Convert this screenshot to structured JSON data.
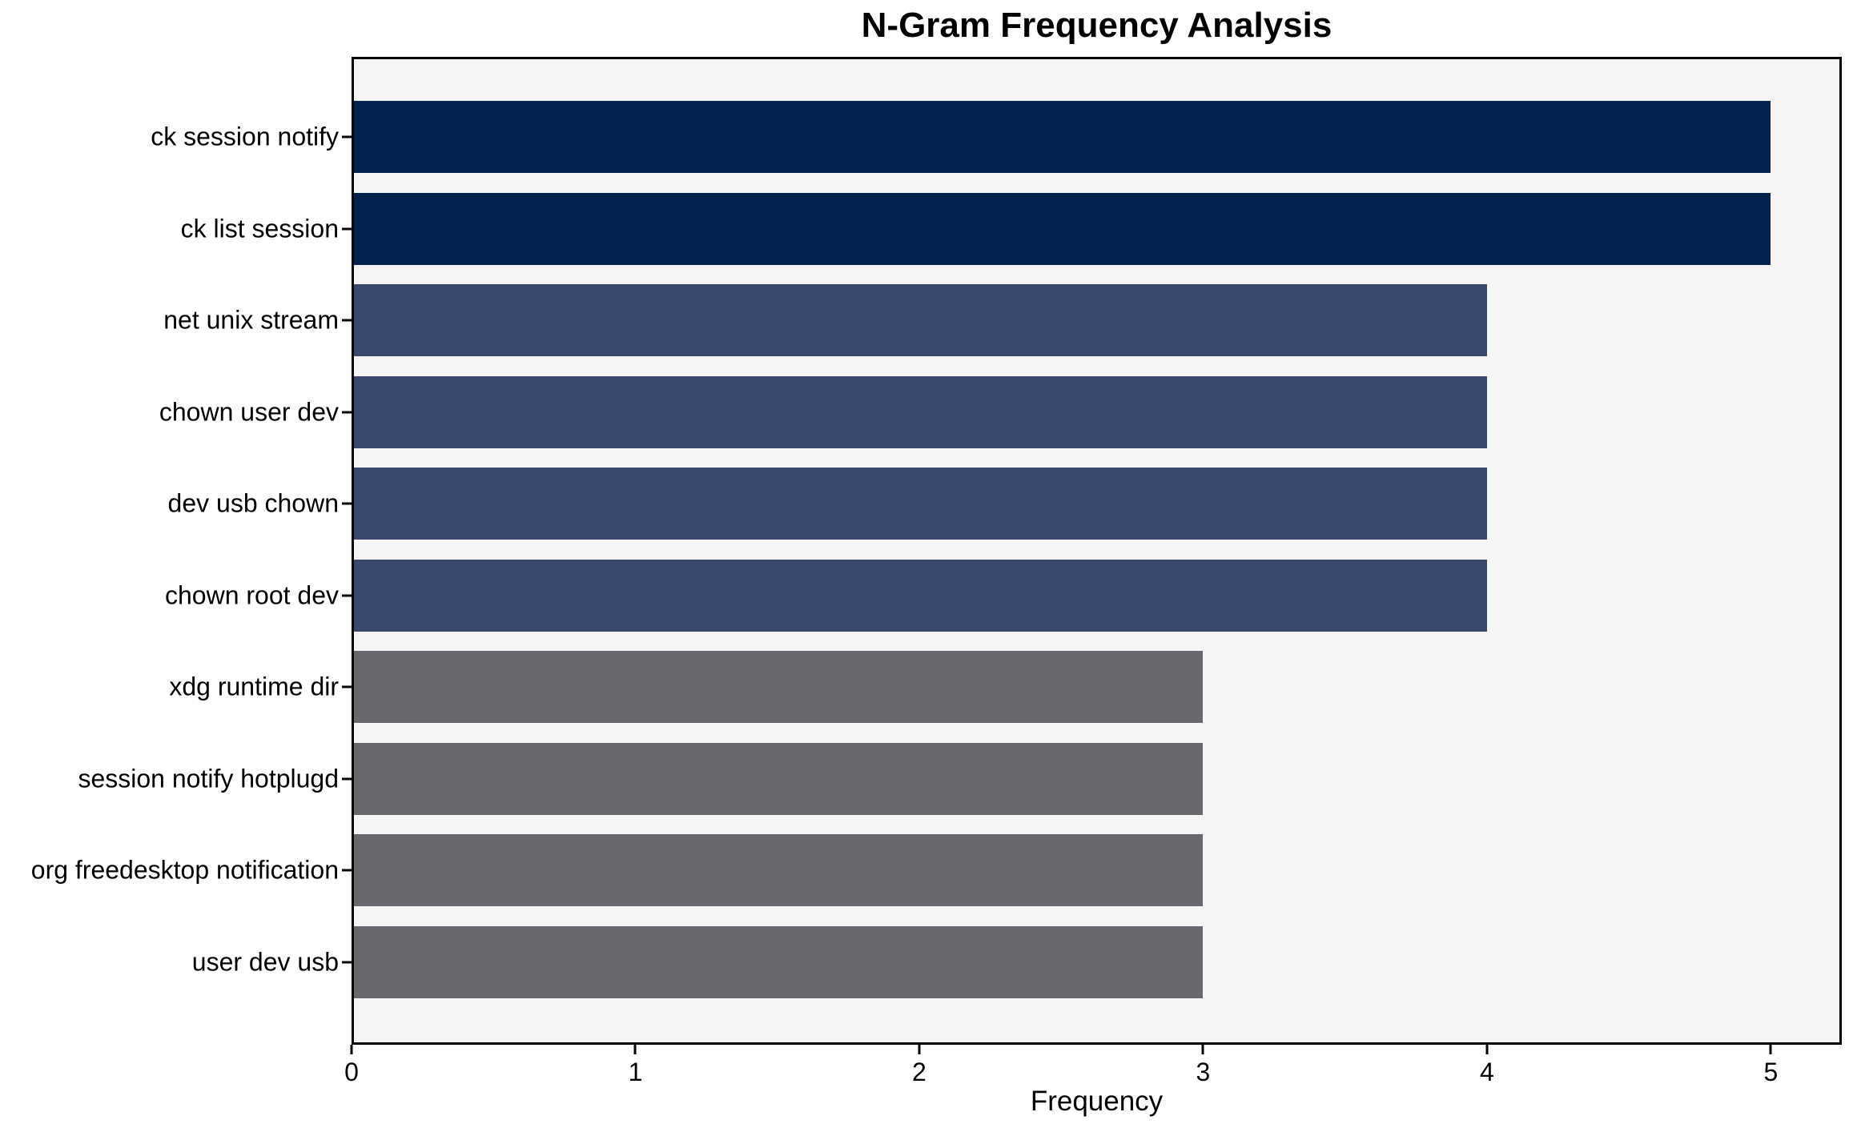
{
  "chart_data": {
    "type": "bar",
    "orientation": "horizontal",
    "title": "N-Gram Frequency Analysis",
    "xlabel": "Frequency",
    "ylabel": "",
    "categories": [
      "ck session notify",
      "ck list session",
      "net unix stream",
      "chown user dev",
      "dev usb chown",
      "chown root dev",
      "xdg runtime dir",
      "session notify hotplugd",
      "org freedesktop notification",
      "user dev usb"
    ],
    "values": [
      5,
      5,
      4,
      4,
      4,
      4,
      3,
      3,
      3,
      3
    ],
    "bar_colors": [
      "#03234e",
      "#03234e",
      "#3a476f",
      "#3a476f",
      "#3a476f",
      "#3a476f",
      "#67696f",
      "#67696f",
      "#67696f",
      "#67696f"
    ],
    "xticks": [
      0,
      1,
      2,
      3,
      4,
      5
    ],
    "xlim": [
      0,
      5.25
    ],
    "grid": false,
    "legend": "none",
    "plot_background": "#f5f5f6",
    "figure_background": "#ffffff",
    "spine_color": "#000000",
    "text_color": "#000000"
  }
}
